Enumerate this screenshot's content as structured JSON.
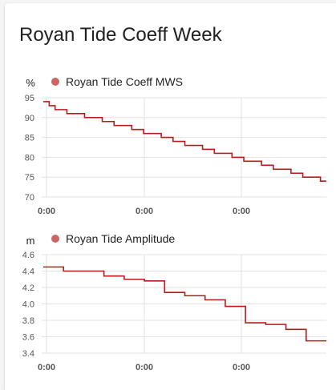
{
  "card": {
    "title": "Royan Tide Coeff Week"
  },
  "colors": {
    "series": "#b71c1c",
    "legend_dot": "#cc6666",
    "grid": "#e2e2e2",
    "text": "#212121",
    "tick": "#555555"
  },
  "chart_data": [
    {
      "type": "line",
      "ylabel": "%",
      "ylim": [
        70,
        95
      ],
      "yticks": [
        95,
        90,
        85,
        80,
        75,
        70
      ],
      "xticks": [
        "0:00",
        "0:00",
        "0:00"
      ],
      "legend_position": "top-left",
      "series": [
        {
          "name": "Royan Tide Coeff MWS",
          "step": true,
          "values": [
            94,
            93,
            92,
            92,
            91,
            91,
            91,
            90,
            90,
            90,
            89,
            89,
            88,
            88,
            88,
            87,
            87,
            86,
            86,
            86,
            85,
            85,
            84,
            84,
            83,
            83,
            83,
            82,
            82,
            81,
            81,
            81,
            80,
            80,
            79,
            79,
            79,
            78,
            78,
            77,
            77,
            77,
            76,
            76,
            75,
            75,
            75,
            74
          ]
        }
      ]
    },
    {
      "type": "line",
      "ylabel": "m",
      "ylim": [
        3.4,
        4.6
      ],
      "yticks": [
        4.6,
        4.4,
        4.2,
        4.0,
        3.8,
        3.6,
        3.4
      ],
      "xticks": [
        "0:00",
        "0:00",
        "0:00"
      ],
      "legend_position": "top-left",
      "series": [
        {
          "name": "Royan Tide Amplitude",
          "step": true,
          "values": [
            4.45,
            4.4,
            4.4,
            4.34,
            4.3,
            4.28,
            4.14,
            4.1,
            4.05,
            3.97,
            3.77,
            3.75,
            3.69,
            3.55
          ]
        }
      ]
    }
  ]
}
